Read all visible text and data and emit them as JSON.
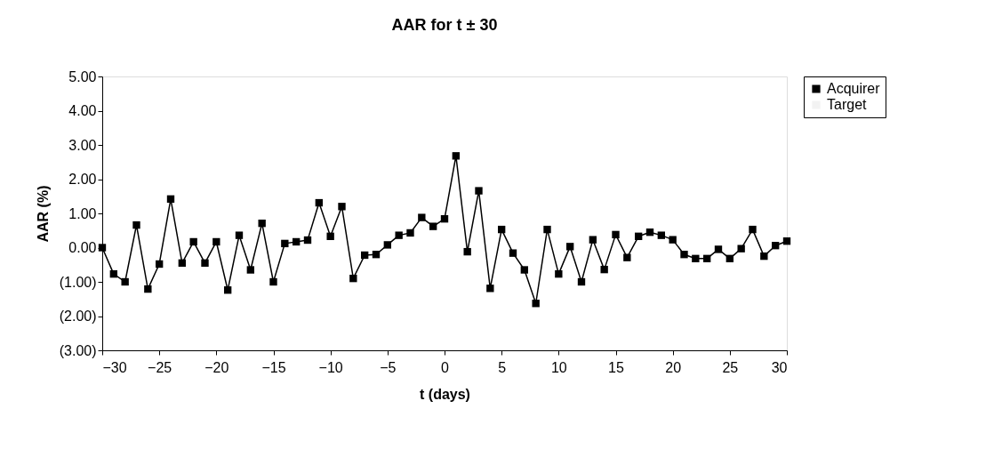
{
  "chart_data": {
    "type": "line",
    "title": "AAR for t ± 30",
    "xlabel": "t (days)",
    "ylabel": "AAR (%)",
    "x": [
      -30,
      -29,
      -28,
      -27,
      -26,
      -25,
      -24,
      -23,
      -22,
      -21,
      -20,
      -19,
      -18,
      -17,
      -16,
      -15,
      -14,
      -13,
      -12,
      -11,
      -10,
      -9,
      -8,
      -7,
      -6,
      -5,
      -4,
      -3,
      -2,
      -1,
      0,
      1,
      2,
      3,
      4,
      5,
      6,
      7,
      8,
      9,
      10,
      11,
      12,
      13,
      14,
      15,
      16,
      17,
      18,
      19,
      20,
      21,
      22,
      23,
      24,
      25,
      26,
      27,
      28,
      29,
      30
    ],
    "series": [
      {
        "name": "Acquirer",
        "color": "#000000",
        "values": [
          0.0,
          -0.77,
          -1.0,
          0.66,
          -1.21,
          -0.48,
          1.42,
          -0.45,
          0.17,
          -0.45,
          0.17,
          -1.24,
          0.36,
          -0.65,
          0.71,
          -1.0,
          0.12,
          0.17,
          0.22,
          1.31,
          0.33,
          1.2,
          -0.9,
          -0.22,
          -0.2,
          0.08,
          0.36,
          0.43,
          0.88,
          0.62,
          0.84,
          2.68,
          -0.12,
          1.66,
          -1.19,
          0.53,
          -0.16,
          -0.65,
          -1.63,
          0.53,
          -0.77,
          0.03,
          -1.0,
          0.23,
          -0.64,
          0.38,
          -0.29,
          0.33,
          0.45,
          0.36,
          0.23,
          -0.2,
          -0.32,
          -0.32,
          -0.05,
          -0.32,
          -0.03,
          0.53,
          -0.25,
          0.06,
          0.19
        ]
      },
      {
        "name": "Target",
        "color": "#f2f2f2",
        "values": [
          null,
          null,
          null,
          null,
          null,
          null,
          null,
          null,
          null,
          null,
          null,
          null,
          null,
          null,
          null,
          null,
          null,
          null,
          null,
          null,
          null,
          null,
          null,
          null,
          null,
          null,
          null,
          null,
          null,
          null,
          null,
          null,
          null,
          null,
          null,
          null,
          null,
          null,
          null,
          null,
          null,
          null,
          null,
          null,
          null,
          null,
          null,
          null,
          null,
          null,
          null,
          null,
          null,
          null,
          null,
          null,
          null,
          null,
          null,
          null,
          null
        ]
      }
    ],
    "xlim": [
      -30,
      30
    ],
    "xticks": [
      -30,
      -25,
      -20,
      -15,
      -10,
      -5,
      0,
      5,
      10,
      15,
      20,
      25,
      30
    ],
    "ylim": [
      -3,
      5
    ],
    "yticks": [
      {
        "value": -3,
        "label": "(3.00)"
      },
      {
        "value": -2,
        "label": "(2.00)"
      },
      {
        "value": -1,
        "label": "(1.00)"
      },
      {
        "value": 0,
        "label": "0.00"
      },
      {
        "value": 1,
        "label": "1.00"
      },
      {
        "value": 2,
        "label": "2.00"
      },
      {
        "value": 3,
        "label": "3.00"
      },
      {
        "value": 4,
        "label": "4.00"
      },
      {
        "value": 5,
        "label": "5.00"
      }
    ],
    "grid": false,
    "legend": "right",
    "marker": "square",
    "line_style": "solid"
  }
}
